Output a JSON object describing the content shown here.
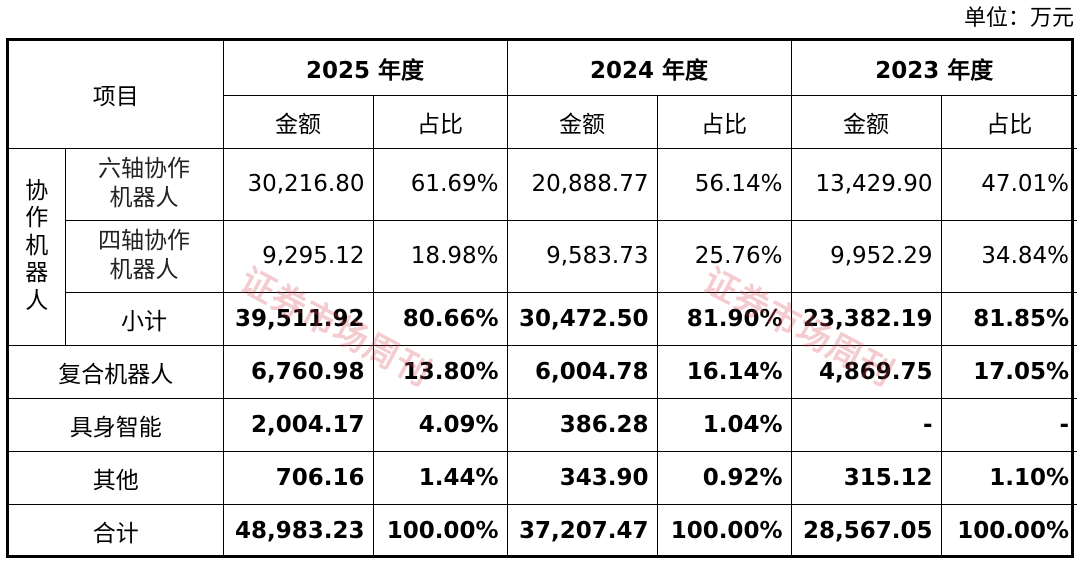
{
  "unit_label": "单位：万元",
  "header": {
    "item": "项目",
    "years": [
      "2025 年度",
      "2024 年度",
      "2023 年度"
    ],
    "amount": "金额",
    "share": "占比"
  },
  "category": {
    "chars": [
      "协",
      "作",
      "机",
      "器",
      "人"
    ]
  },
  "rows": [
    {
      "label_lines": [
        "六轴协作",
        "机器人"
      ],
      "bold": false,
      "cells": [
        "30,216.80",
        "61.69%",
        "20,888.77",
        "56.14%",
        "13,429.90",
        "47.01%"
      ]
    },
    {
      "label_lines": [
        "四轴协作",
        "机器人"
      ],
      "bold": false,
      "cells": [
        "9,295.12",
        "18.98%",
        "9,583.73",
        "25.76%",
        "9,952.29",
        "34.84%"
      ]
    },
    {
      "label_lines": [
        "小计"
      ],
      "bold": true,
      "cells": [
        "39,511.92",
        "80.66%",
        "30,472.50",
        "81.90%",
        "23,382.19",
        "81.85%"
      ]
    },
    {
      "label_lines": [
        "复合机器人"
      ],
      "bold": true,
      "cells": [
        "6,760.98",
        "13.80%",
        "6,004.78",
        "16.14%",
        "4,869.75",
        "17.05%"
      ]
    },
    {
      "label_lines": [
        "具身智能"
      ],
      "bold": true,
      "cells": [
        "2,004.17",
        "4.09%",
        "386.28",
        "1.04%",
        "-",
        "-"
      ]
    },
    {
      "label_lines": [
        "其他"
      ],
      "bold": true,
      "cells": [
        "706.16",
        "1.44%",
        "343.90",
        "0.92%",
        "315.12",
        "1.10%"
      ]
    },
    {
      "label_lines": [
        "合计"
      ],
      "bold": true,
      "cells": [
        "48,983.23",
        "100.00%",
        "37,207.47",
        "100.00%",
        "28,567.05",
        "100.00%"
      ]
    }
  ],
  "watermark": "证券市场周刊"
}
